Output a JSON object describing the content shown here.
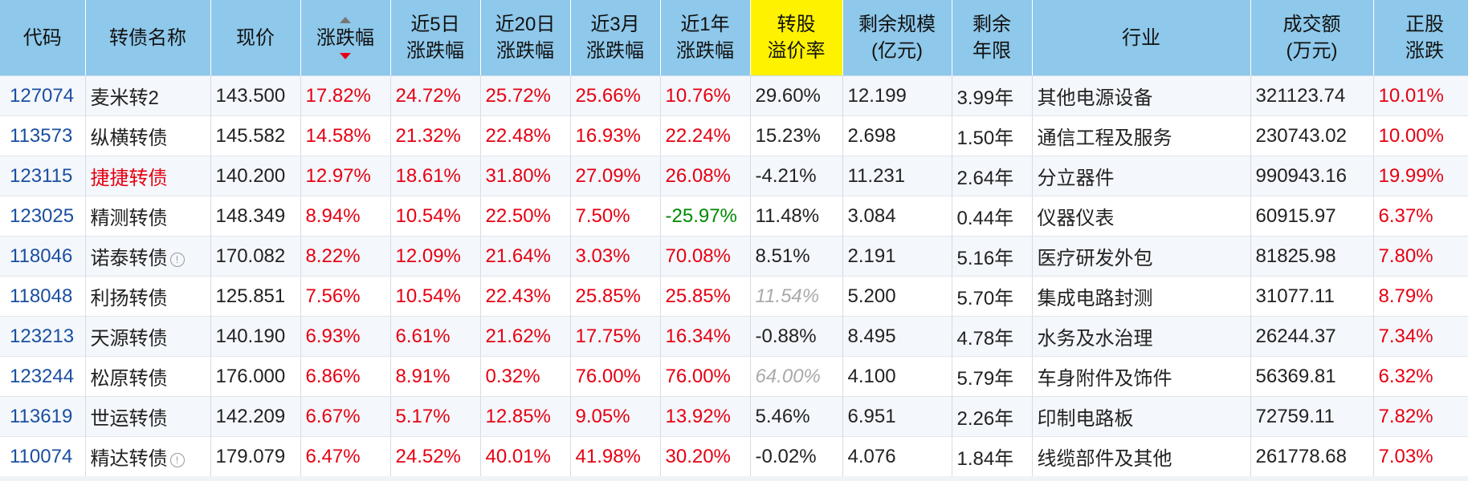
{
  "headers": {
    "code": "代码",
    "name": "转债名称",
    "price": "现价",
    "change": "涨跌幅",
    "d5_l1": "近5日",
    "d5_l2": "涨跌幅",
    "d20_l1": "近20日",
    "d20_l2": "涨跌幅",
    "m3_l1": "近3月",
    "m3_l2": "涨跌幅",
    "y1_l1": "近1年",
    "y1_l2": "涨跌幅",
    "premium_l1": "转股",
    "premium_l2": "溢价率",
    "scale_l1": "剩余规模",
    "scale_l2": "(亿元)",
    "years_l1": "剩余",
    "years_l2": "年限",
    "industry": "行业",
    "turnover_l1": "成交额",
    "turnover_l2": "(万元)",
    "stock_l1": "正股",
    "stock_l2": "涨跌"
  },
  "colors": {
    "header_bg": "#8ec8ea",
    "highlight_header": "#fff200",
    "red": "#e60012",
    "green": "#008a00",
    "code": "#1a4fa0"
  },
  "rows": [
    {
      "code": "127074",
      "name": "麦米转2",
      "price": "143.500",
      "change": "17.82%",
      "d5": "24.72%",
      "d20": "25.72%",
      "m3": "25.66%",
      "y1": "10.76%",
      "premium": "29.60%",
      "scale": "12.199",
      "years": "3.99年",
      "industry": "其他电源设备",
      "turnover": "321123.74",
      "stock": "10.01%"
    },
    {
      "code": "113573",
      "name": "纵横转债",
      "price": "145.582",
      "change": "14.58%",
      "d5": "21.32%",
      "d20": "22.48%",
      "m3": "16.93%",
      "y1": "22.24%",
      "premium": "15.23%",
      "scale": "2.698",
      "years": "1.50年",
      "industry": "通信工程及服务",
      "turnover": "230743.02",
      "stock": "10.00%"
    },
    {
      "code": "123115",
      "name": "捷捷转债",
      "price": "140.200",
      "change": "12.97%",
      "d5": "18.61%",
      "d20": "31.80%",
      "m3": "27.09%",
      "y1": "26.08%",
      "premium": "-4.21%",
      "scale": "11.231",
      "years": "2.64年",
      "industry": "分立器件",
      "turnover": "990943.16",
      "stock": "19.99%"
    },
    {
      "code": "123025",
      "name": "精测转债",
      "price": "148.349",
      "change": "8.94%",
      "d5": "10.54%",
      "d20": "22.50%",
      "m3": "7.50%",
      "y1": "-25.97%",
      "premium": "11.48%",
      "scale": "3.084",
      "years": "0.44年",
      "industry": "仪器仪表",
      "turnover": "60915.97",
      "stock": "6.37%"
    },
    {
      "code": "118046",
      "name": "诺泰转债",
      "price": "170.082",
      "change": "8.22%",
      "d5": "12.09%",
      "d20": "21.64%",
      "m3": "3.03%",
      "y1": "70.08%",
      "premium": "8.51%",
      "scale": "2.191",
      "years": "5.16年",
      "industry": "医疗研发外包",
      "turnover": "81825.98",
      "stock": "7.80%",
      "icon": "!"
    },
    {
      "code": "118048",
      "name": "利扬转债",
      "price": "125.851",
      "change": "7.56%",
      "d5": "10.54%",
      "d20": "22.43%",
      "m3": "25.85%",
      "y1": "25.85%",
      "premium": "11.54%",
      "scale": "5.200",
      "years": "5.70年",
      "industry": "集成电路封测",
      "turnover": "31077.11",
      "stock": "8.79%"
    },
    {
      "code": "123213",
      "name": "天源转债",
      "price": "140.190",
      "change": "6.93%",
      "d5": "6.61%",
      "d20": "21.62%",
      "m3": "17.75%",
      "y1": "16.34%",
      "premium": "-0.88%",
      "scale": "8.495",
      "years": "4.78年",
      "industry": "水务及水治理",
      "turnover": "26244.37",
      "stock": "7.34%"
    },
    {
      "code": "123244",
      "name": "松原转债",
      "price": "176.000",
      "change": "6.86%",
      "d5": "8.91%",
      "d20": "0.32%",
      "m3": "76.00%",
      "y1": "76.00%",
      "premium": "64.00%",
      "scale": "4.100",
      "years": "5.79年",
      "industry": "车身附件及饰件",
      "turnover": "56369.81",
      "stock": "6.32%"
    },
    {
      "code": "113619",
      "name": "世运转债",
      "price": "142.209",
      "change": "6.67%",
      "d5": "5.17%",
      "d20": "12.85%",
      "m3": "9.05%",
      "y1": "13.92%",
      "premium": "5.46%",
      "scale": "6.951",
      "years": "2.26年",
      "industry": "印制电路板",
      "turnover": "72759.11",
      "stock": "7.82%"
    },
    {
      "code": "110074",
      "name": "精达转债",
      "price": "179.079",
      "change": "6.47%",
      "d5": "24.52%",
      "d20": "40.01%",
      "m3": "41.98%",
      "y1": "30.20%",
      "premium": "-0.02%",
      "scale": "4.076",
      "years": "1.84年",
      "industry": "线缆部件及其他",
      "turnover": "261778.68",
      "stock": "7.03%",
      "icon": "!"
    }
  ]
}
